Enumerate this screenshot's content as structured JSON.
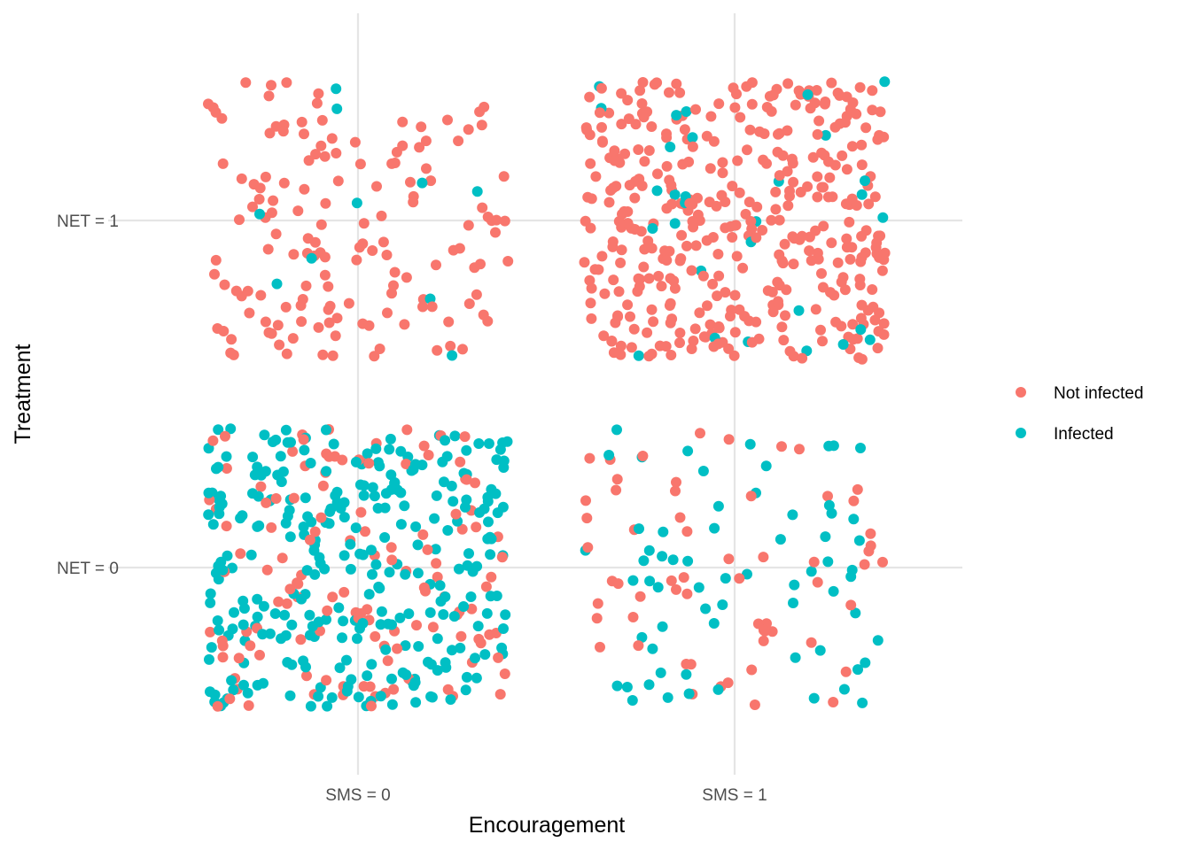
{
  "chart_data": {
    "type": "scatter",
    "jittered": true,
    "x_categories": [
      "SMS = 0",
      "SMS = 1"
    ],
    "y_categories": [
      "NET = 0",
      "NET = 1"
    ],
    "xlabel": "Encouragement",
    "ylabel": "Treatment",
    "grid": true,
    "legend_position": "right",
    "series": [
      {
        "name": "Not infected",
        "color": "#F8766D"
      },
      {
        "name": "Infected",
        "color": "#00BFC4"
      }
    ],
    "cells": [
      {
        "sms": 0,
        "net": 1,
        "not_infected": 150,
        "infected": 10
      },
      {
        "sms": 1,
        "net": 1,
        "not_infected": 400,
        "infected": 30
      },
      {
        "sms": 0,
        "net": 0,
        "not_infected": 130,
        "infected": 300
      },
      {
        "sms": 1,
        "net": 0,
        "not_infected": 60,
        "infected": 65
      }
    ]
  }
}
